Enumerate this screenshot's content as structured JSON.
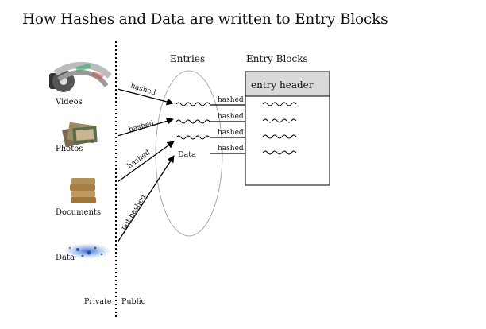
{
  "title": "How Hashes and Data are written to Entry Blocks",
  "sources": {
    "videos": "Videos",
    "photos": "Photos",
    "documents": "Documents",
    "data": "Data"
  },
  "divider": {
    "private": "Private",
    "public": "Public"
  },
  "entries": {
    "heading": "Entries",
    "data_label": "Data"
  },
  "entry_blocks": {
    "heading": "Entry Blocks",
    "header": "entry header"
  },
  "arrow_labels": {
    "videos": "hashed",
    "photos": "hashed",
    "documents": "hashed",
    "data": "not hashed",
    "entry_1": "hashed",
    "entry_2": "hashed",
    "entry_3": "hashed",
    "entry_4": "hashed"
  }
}
